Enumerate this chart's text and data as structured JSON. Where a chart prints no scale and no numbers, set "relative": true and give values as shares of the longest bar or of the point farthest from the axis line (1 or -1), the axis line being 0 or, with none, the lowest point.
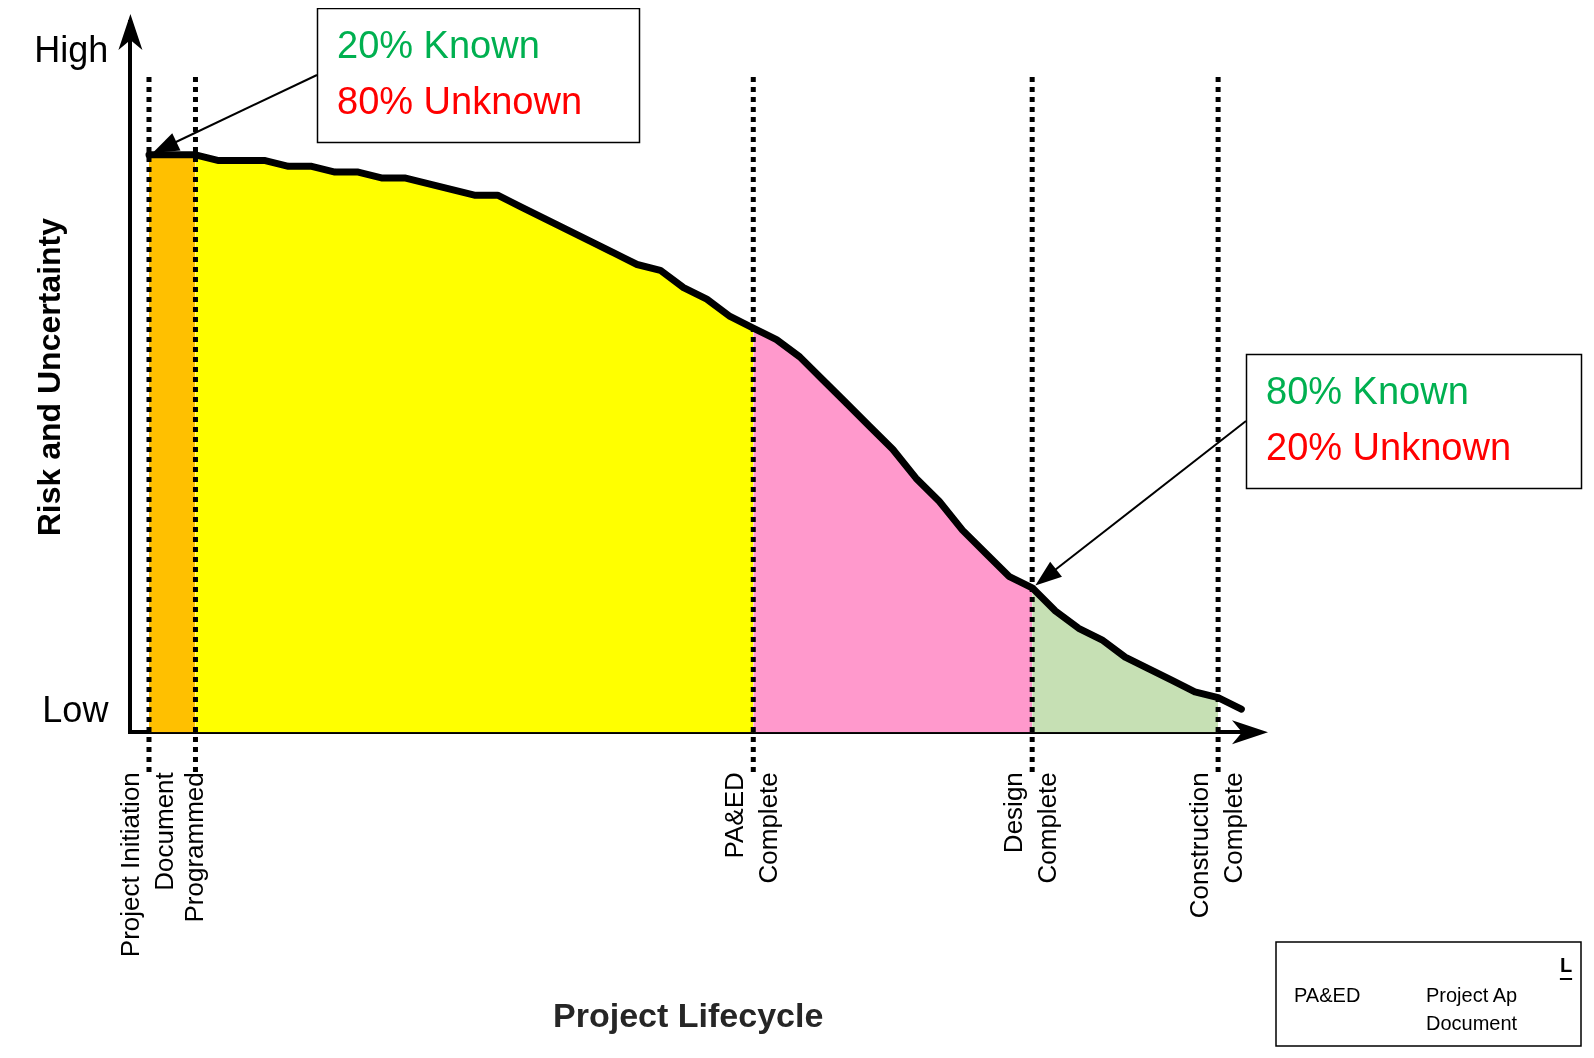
{
  "chart_data": {
    "type": "area",
    "relative": true,
    "xlabel": "Project Lifecycle",
    "ylabel": "Risk and Uncertainty",
    "categories": [
      "Project Initiation\nDocument",
      null,
      "Programmed",
      null,
      null,
      null,
      null,
      null,
      null,
      null,
      null,
      null,
      null,
      null,
      null,
      null,
      null,
      null,
      null,
      null,
      null,
      null,
      null,
      null,
      null,
      null,
      "PA&ED\nComplete",
      null,
      null,
      null,
      null,
      null,
      null,
      null,
      null,
      null,
      null,
      null,
      "Design\nComplete",
      null,
      null,
      null,
      null,
      null,
      null,
      null,
      "Construction\nComplete",
      null
    ],
    "series": [
      {
        "color": "#ffc000",
        "values": [
          1,
          1,
          1,
          null,
          null,
          null,
          null,
          null,
          null,
          null,
          null,
          null,
          null,
          null,
          null,
          null,
          null,
          null,
          null,
          null,
          null,
          null,
          null,
          null,
          null,
          null,
          null,
          null,
          null,
          null,
          null,
          null,
          null,
          null,
          null,
          null,
          null,
          null,
          null,
          null,
          null,
          null,
          null,
          null,
          null,
          null,
          null,
          null
        ]
      },
      {
        "color": "#ffff00",
        "values": [
          null,
          null,
          1,
          0.99,
          0.99,
          0.99,
          0.98,
          0.98,
          0.97,
          0.97,
          0.96,
          0.96,
          0.95,
          0.94,
          0.93,
          0.93,
          0.91,
          0.89,
          0.87,
          0.85,
          0.83,
          0.81,
          0.8,
          0.77,
          0.75,
          0.72,
          0.7,
          null,
          null,
          null,
          null,
          null,
          null,
          null,
          null,
          null,
          null,
          null,
          null,
          null,
          null,
          null,
          null,
          null,
          null,
          null,
          null,
          null
        ]
      },
      {
        "color": "#ff99cc",
        "values": [
          null,
          null,
          null,
          null,
          null,
          null,
          null,
          null,
          null,
          null,
          null,
          null,
          null,
          null,
          null,
          null,
          null,
          null,
          null,
          null,
          null,
          null,
          null,
          null,
          null,
          null,
          0.7,
          0.68,
          0.65,
          0.61,
          0.57,
          0.53,
          0.49,
          0.44,
          0.4,
          0.35,
          0.31,
          0.27,
          0.25,
          null,
          null,
          null,
          null,
          null,
          null,
          null,
          null,
          null
        ]
      },
      {
        "color": "#c6e0b4",
        "values": [
          null,
          null,
          null,
          null,
          null,
          null,
          null,
          null,
          null,
          null,
          null,
          null,
          null,
          null,
          null,
          null,
          null,
          null,
          null,
          null,
          null,
          null,
          null,
          null,
          null,
          null,
          null,
          null,
          null,
          null,
          null,
          null,
          null,
          null,
          null,
          null,
          null,
          null,
          0.25,
          0.21,
          0.18,
          0.16,
          0.13,
          0.11,
          0.09,
          0.07,
          0.06,
          null
        ]
      },
      {
        "type": "line",
        "color": "#000000",
        "values": [
          1,
          1,
          1,
          0.99,
          0.99,
          0.99,
          0.98,
          0.98,
          0.97,
          0.97,
          0.96,
          0.96,
          0.95,
          0.94,
          0.93,
          0.93,
          0.91,
          0.89,
          0.87,
          0.85,
          0.83,
          0.81,
          0.8,
          0.77,
          0.75,
          0.72,
          0.7,
          0.68,
          0.65,
          0.61,
          0.57,
          0.53,
          0.49,
          0.44,
          0.4,
          0.35,
          0.31,
          0.27,
          0.25,
          0.21,
          0.18,
          0.16,
          0.13,
          0.11,
          0.09,
          0.07,
          0.06,
          0.04
        ]
      }
    ],
    "ref_lines": [
      {
        "axis": "x",
        "value": "Project Initiation\nDocument",
        "color": "#000000",
        "line_style": "dotted"
      },
      {
        "axis": "x",
        "value": "Programmed",
        "color": "#000000",
        "line_style": "dotted"
      },
      {
        "axis": "x",
        "value": "PA&ED\nComplete",
        "color": "#000000",
        "line_style": "dotted"
      },
      {
        "axis": "x",
        "value": "Design\nComplete",
        "color": "#000000",
        "line_style": "dotted"
      },
      {
        "axis": "x",
        "value": "Construction\nComplete",
        "color": "#000000",
        "line_style": "dotted"
      }
    ],
    "legend": false,
    "marker": "none",
    "line_style": "solid",
    "annotations": [
      "High",
      "Low",
      "20% Known\n80% Unknown",
      "80% Known\n20% Unknown",
      "L",
      "PA&ED",
      "Project Ap\nDocument"
    ]
  }
}
